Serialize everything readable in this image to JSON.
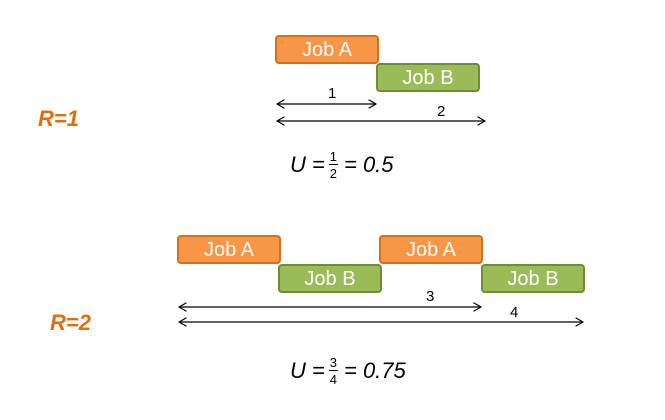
{
  "r1": {
    "label": "R=1",
    "job_a": "Job A",
    "job_b": "Job B",
    "arrow1_label": "1",
    "arrow2_label": "2",
    "formula": {
      "lhs": "U",
      "eq": "=",
      "numerator": "1",
      "denominator": "2",
      "rhs": "= 0.5"
    }
  },
  "r2": {
    "label": "R=2",
    "job_a_1": "Job A",
    "job_b_1": "Job B",
    "job_a_2": "Job A",
    "job_b_2": "Job B",
    "arrow3_label": "3",
    "arrow4_label": "4",
    "formula": {
      "lhs": "U",
      "eq": "=",
      "numerator": "3",
      "denominator": "4",
      "rhs": "= 0.75"
    }
  },
  "colors": {
    "label_orange": "#e46c0a",
    "job_a_fill": "#f79646",
    "job_a_border": "#d4701a",
    "job_b_fill": "#9bbb59",
    "job_b_border": "#6f8d34"
  }
}
